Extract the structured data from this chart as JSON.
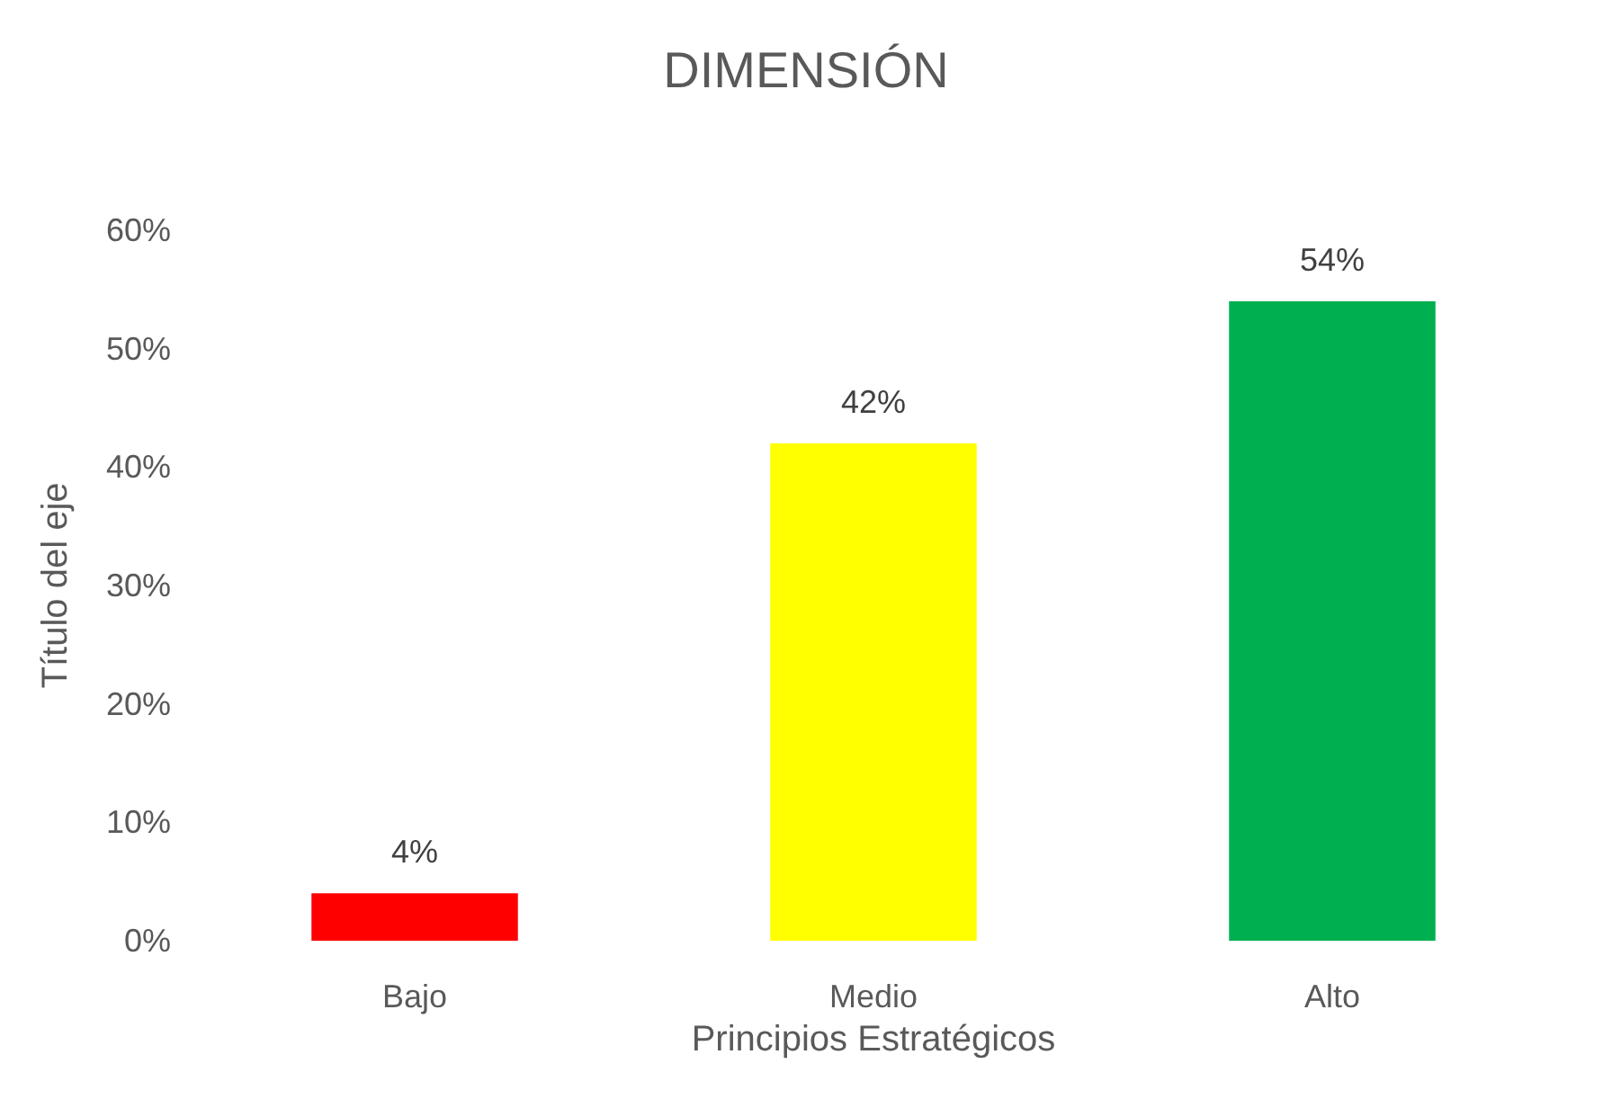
{
  "chart_data": {
    "type": "bar",
    "title": "DIMENSIÓN",
    "xlabel": "Principios Estratégicos",
    "ylabel": "Título del eje",
    "categories": [
      "Bajo",
      "Medio",
      "Alto"
    ],
    "values": [
      4,
      42,
      54
    ],
    "colors": [
      "#ff0000",
      "#ffff00",
      "#00b050"
    ],
    "value_labels": [
      "4%",
      "42%",
      "54%"
    ],
    "ylim": [
      0,
      60
    ],
    "yticks": [
      {
        "value": 0,
        "label": "0%"
      },
      {
        "value": 10,
        "label": "10%"
      },
      {
        "value": 20,
        "label": "20%"
      },
      {
        "value": 30,
        "label": "30%"
      },
      {
        "value": 40,
        "label": "40%"
      },
      {
        "value": 50,
        "label": "50%"
      },
      {
        "value": 60,
        "label": "60%"
      }
    ],
    "grid": false
  }
}
